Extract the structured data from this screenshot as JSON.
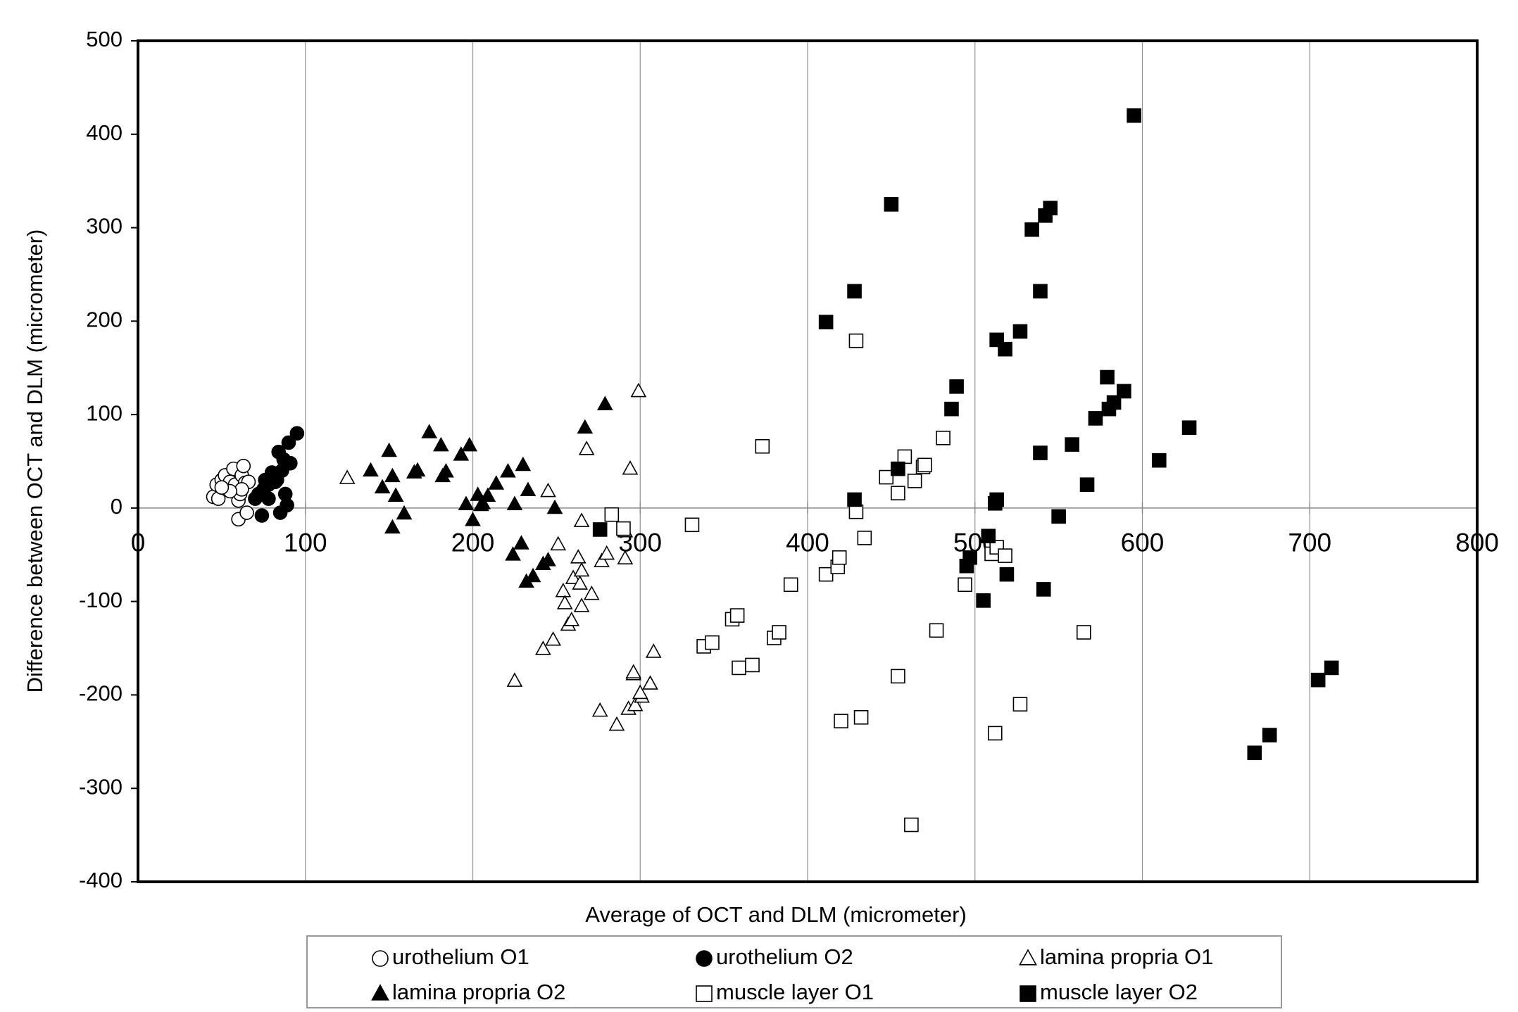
{
  "chart_data": {
    "type": "scatter",
    "x_label": "Average of OCT and DLM (micrometer)",
    "y_label": "Difference between OCT and DLM (micrometer)",
    "xlim": [
      0,
      800
    ],
    "xticks": [
      0,
      100,
      200,
      300,
      400,
      500,
      600,
      700,
      800
    ],
    "ylim": [
      -400,
      500
    ],
    "yticks": [
      -400,
      -300,
      -200,
      -100,
      0,
      100,
      200,
      300,
      400,
      500
    ],
    "grid": "x",
    "legend_position": "bottom",
    "series": [
      {
        "name": "urothelium O1",
        "color": "#000000",
        "marker": "circle",
        "filled": false,
        "x": [
          45,
          47,
          48,
          50,
          52,
          53,
          55,
          57,
          58,
          60,
          61,
          62,
          63,
          60,
          64,
          65,
          66,
          62,
          55,
          50
        ],
        "values": [
          12,
          25,
          10,
          30,
          35,
          20,
          28,
          42,
          25,
          8,
          15,
          35,
          45,
          -12,
          27,
          -5,
          28,
          20,
          18,
          22
        ]
      },
      {
        "name": "urothelium O2",
        "color": "#000000",
        "marker": "circle",
        "filled": true,
        "x": [
          70,
          72,
          74,
          75,
          76,
          78,
          80,
          82,
          84,
          85,
          86,
          87,
          88,
          89,
          90,
          91,
          95,
          78,
          83
        ],
        "values": [
          10,
          15,
          -8,
          20,
          30,
          25,
          38,
          28,
          60,
          -5,
          40,
          52,
          15,
          3,
          70,
          48,
          80,
          10,
          30
        ]
      },
      {
        "name": "lamina propria O1",
        "color": "#000000",
        "marker": "triangle",
        "filled": false,
        "x": [
          125,
          245,
          265,
          251,
          225,
          242,
          248,
          254,
          255,
          257,
          259,
          260,
          263,
          264,
          265,
          265,
          268,
          271,
          276,
          277,
          280,
          286,
          291,
          294,
          291,
          293,
          296,
          296,
          297,
          299,
          301,
          300,
          306,
          308
        ],
        "values": [
          32,
          18,
          -14,
          -39,
          -185,
          -151,
          -141,
          -89,
          -102,
          -125,
          -120,
          -75,
          -53,
          -81,
          -67,
          -105,
          63,
          -92,
          -217,
          -57,
          -49,
          -232,
          -25,
          42,
          -54,
          -215,
          -178,
          -176,
          -211,
          125,
          -202,
          -198,
          -188,
          -154
        ]
      },
      {
        "name": "lamina propria O2",
        "color": "#000000",
        "marker": "triangle",
        "filled": true,
        "x": [
          139,
          146,
          150,
          152,
          154,
          152,
          159,
          165,
          167,
          174,
          181,
          182,
          184,
          193,
          198,
          196,
          200,
          203,
          205,
          206,
          209,
          214,
          221,
          225,
          224,
          229,
          230,
          233,
          232,
          236,
          242,
          245,
          249,
          267,
          279
        ],
        "values": [
          40,
          22,
          61,
          34,
          13,
          -21,
          -6,
          38,
          40,
          81,
          67,
          34,
          39,
          57,
          67,
          4,
          -13,
          14,
          3,
          5,
          13,
          26,
          39,
          4,
          -50,
          -38,
          46,
          19,
          -79,
          -73,
          -60,
          -56,
          0,
          86,
          111
        ]
      },
      {
        "name": "muscle layer O1",
        "color": "#000000",
        "marker": "square",
        "filled": false,
        "x": [
          290,
          283,
          331,
          373,
          390,
          338,
          343,
          355,
          358,
          359,
          367,
          380,
          383,
          411,
          418,
          419,
          420,
          429,
          429,
          432,
          434,
          447,
          454,
          454,
          458,
          464,
          469,
          470,
          462,
          477,
          481,
          494,
          510,
          513,
          512,
          518,
          527,
          565
        ],
        "values": [
          -22,
          -7,
          -18,
          66,
          -82,
          -148,
          -144,
          -119,
          -115,
          -171,
          -168,
          -139,
          -133,
          -71,
          -63,
          -53,
          -228,
          179,
          -4,
          -224,
          -32,
          33,
          16,
          -180,
          55,
          29,
          44,
          46,
          -339,
          -131,
          75,
          -82,
          -49,
          -42,
          -241,
          -51,
          -210,
          -133
        ]
      },
      {
        "name": "muscle layer O2",
        "color": "#000000",
        "marker": "square",
        "filled": true,
        "x": [
          276,
          411,
          428,
          428,
          450,
          454,
          486,
          489,
          505,
          508,
          495,
          497,
          512,
          513,
          513,
          518,
          519,
          527,
          534,
          539,
          539,
          542,
          541,
          545,
          550,
          558,
          567,
          572,
          579,
          580,
          583,
          589,
          595,
          610,
          628,
          667,
          676,
          705,
          713
        ],
        "values": [
          -23,
          199,
          232,
          9,
          325,
          42,
          106,
          130,
          -99,
          -30,
          -62,
          -53,
          5,
          9,
          180,
          170,
          -71,
          189,
          298,
          232,
          59,
          313,
          -87,
          321,
          -9,
          68,
          25,
          96,
          140,
          106,
          113,
          125,
          420,
          51,
          86,
          -262,
          -243,
          -184,
          -171
        ]
      }
    ]
  }
}
